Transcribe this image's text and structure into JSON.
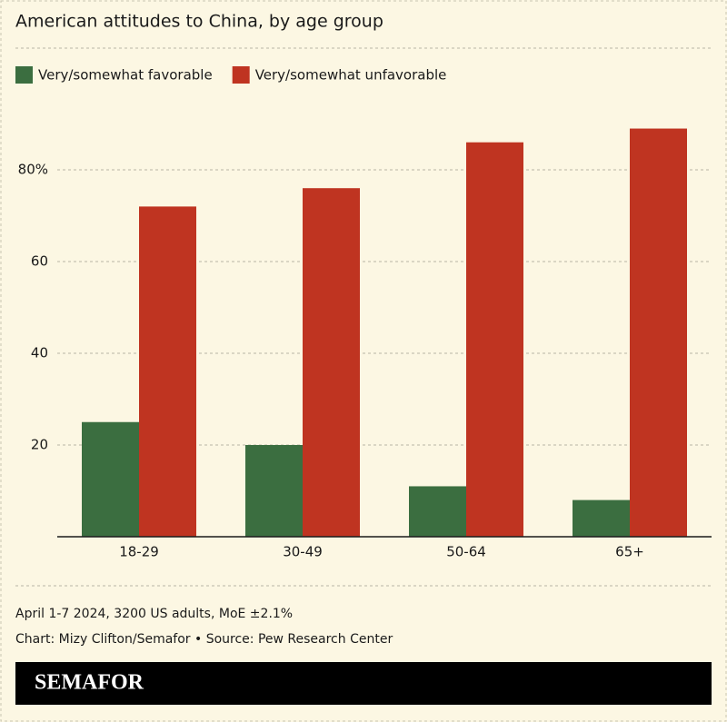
{
  "chart_data": {
    "type": "bar",
    "title": "American attitudes to China, by age group",
    "categories": [
      "18-29",
      "30-49",
      "50-64",
      "65+"
    ],
    "series": [
      {
        "name": "Very/somewhat favorable",
        "color": "#3b6e40",
        "values": [
          25,
          20,
          11,
          8
        ]
      },
      {
        "name": "Very/somewhat unfavorable",
        "color": "#bf3421",
        "values": [
          72,
          76,
          86,
          89
        ]
      }
    ],
    "ylim": [
      0,
      90
    ],
    "yticks": [
      20,
      40,
      60,
      {
        "value": 80,
        "label": "80%"
      }
    ],
    "grid": true,
    "note": "April 1-7 2024, 3200 US adults, MoE ±2.1%",
    "source": "Chart: Mizy Clifton/Semafor • Source: Pew Research Center",
    "brand": "SEMAFOR"
  }
}
